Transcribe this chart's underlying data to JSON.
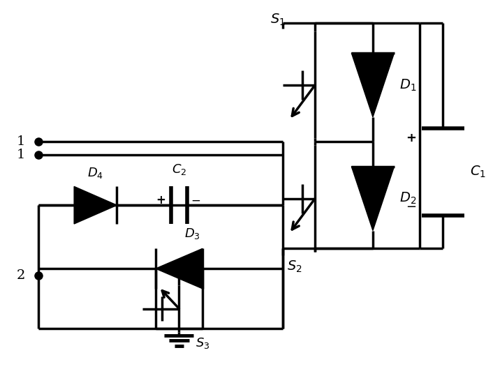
{
  "fig_width": 6.96,
  "fig_height": 5.52,
  "dpi": 100,
  "bg_color": "white",
  "lw": 2.0,
  "lw_thick": 2.5
}
